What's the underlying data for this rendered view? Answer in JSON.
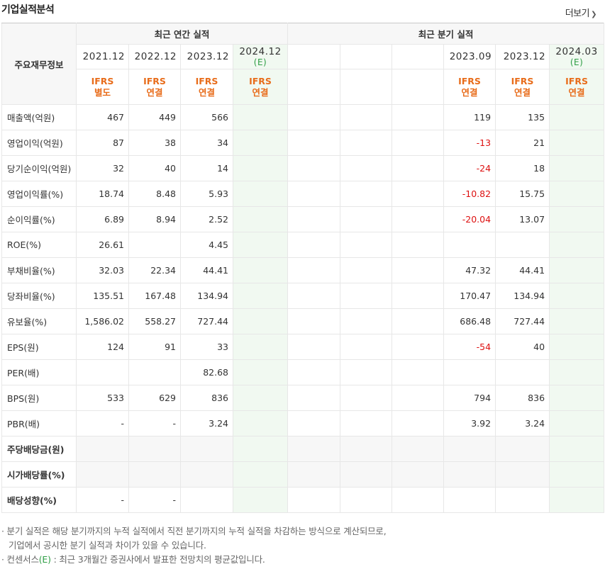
{
  "title": "기업실적분석",
  "more": {
    "label": "더보기",
    "icon": "chevron-right-icon"
  },
  "header": {
    "row_label": "주요재무정보",
    "annual_title": "최근 연간 실적",
    "quarter_title": "최근 분기 실적"
  },
  "annual": [
    {
      "period": "2021.12",
      "est": "",
      "ifrs1": "IFRS",
      "ifrs2": "별도"
    },
    {
      "period": "2022.12",
      "est": "",
      "ifrs1": "IFRS",
      "ifrs2": "연결"
    },
    {
      "period": "2023.12",
      "est": "",
      "ifrs1": "IFRS",
      "ifrs2": "연결"
    },
    {
      "period": "2024.12",
      "est": "(E)",
      "ifrs1": "IFRS",
      "ifrs2": "연결"
    }
  ],
  "quarter": [
    {
      "period": "",
      "est": "",
      "ifrs1": "",
      "ifrs2": ""
    },
    {
      "period": "",
      "est": "",
      "ifrs1": "",
      "ifrs2": ""
    },
    {
      "period": "",
      "est": "",
      "ifrs1": "",
      "ifrs2": ""
    },
    {
      "period": "2023.09",
      "est": "",
      "ifrs1": "IFRS",
      "ifrs2": "연결"
    },
    {
      "period": "2023.12",
      "est": "",
      "ifrs1": "IFRS",
      "ifrs2": "연결"
    },
    {
      "period": "2024.03",
      "est": "(E)",
      "ifrs1": "IFRS",
      "ifrs2": "연결"
    }
  ],
  "rows": [
    {
      "label": "매출액(억원)",
      "bold": false,
      "sec": false,
      "blank": false,
      "a": [
        "467",
        "449",
        "566",
        ""
      ],
      "q": [
        "",
        "",
        "",
        "119",
        "135",
        ""
      ]
    },
    {
      "label": "영업이익(억원)",
      "bold": false,
      "sec": false,
      "blank": false,
      "a": [
        "87",
        "38",
        "34",
        ""
      ],
      "q": [
        "",
        "",
        "",
        "-13",
        "21",
        ""
      ]
    },
    {
      "label": "당기순이익(억원)",
      "bold": false,
      "sec": false,
      "blank": false,
      "a": [
        "32",
        "40",
        "14",
        ""
      ],
      "q": [
        "",
        "",
        "",
        "-24",
        "18",
        ""
      ]
    },
    {
      "label": "영업이익률(%)",
      "bold": false,
      "sec": true,
      "blank": false,
      "a": [
        "18.74",
        "8.48",
        "5.93",
        ""
      ],
      "q": [
        "",
        "",
        "",
        "-10.82",
        "15.75",
        ""
      ]
    },
    {
      "label": "순이익률(%)",
      "bold": false,
      "sec": false,
      "blank": false,
      "a": [
        "6.89",
        "8.94",
        "2.52",
        ""
      ],
      "q": [
        "",
        "",
        "",
        "-20.04",
        "13.07",
        ""
      ]
    },
    {
      "label": "ROE(%)",
      "bold": false,
      "sec": false,
      "blank": false,
      "a": [
        "26.61",
        "",
        "4.45",
        ""
      ],
      "q": [
        "",
        "",
        "",
        "",
        "",
        ""
      ]
    },
    {
      "label": "부채비율(%)",
      "bold": false,
      "sec": true,
      "blank": false,
      "a": [
        "32.03",
        "22.34",
        "44.41",
        ""
      ],
      "q": [
        "",
        "",
        "",
        "47.32",
        "44.41",
        ""
      ]
    },
    {
      "label": "당좌비율(%)",
      "bold": false,
      "sec": false,
      "blank": false,
      "a": [
        "135.51",
        "167.48",
        "134.94",
        ""
      ],
      "q": [
        "",
        "",
        "",
        "170.47",
        "134.94",
        ""
      ]
    },
    {
      "label": "유보율(%)",
      "bold": false,
      "sec": false,
      "blank": false,
      "a": [
        "1,586.02",
        "558.27",
        "727.44",
        ""
      ],
      "q": [
        "",
        "",
        "",
        "686.48",
        "727.44",
        ""
      ]
    },
    {
      "label": "EPS(원)",
      "bold": false,
      "sec": true,
      "blank": false,
      "a": [
        "124",
        "91",
        "33",
        ""
      ],
      "q": [
        "",
        "",
        "",
        "-54",
        "40",
        ""
      ]
    },
    {
      "label": "PER(배)",
      "bold": false,
      "sec": false,
      "blank": false,
      "a": [
        "",
        "",
        "82.68",
        ""
      ],
      "q": [
        "",
        "",
        "",
        "",
        "",
        ""
      ]
    },
    {
      "label": "BPS(원)",
      "bold": false,
      "sec": false,
      "blank": false,
      "a": [
        "533",
        "629",
        "836",
        ""
      ],
      "q": [
        "",
        "",
        "",
        "794",
        "836",
        ""
      ]
    },
    {
      "label": "PBR(배)",
      "bold": false,
      "sec": false,
      "blank": false,
      "a": [
        "-",
        "-",
        "3.24",
        ""
      ],
      "q": [
        "",
        "",
        "",
        "3.92",
        "3.24",
        ""
      ]
    },
    {
      "label": "주당배당금(원)",
      "bold": true,
      "sec": true,
      "blank": true,
      "a": [
        "",
        "",
        "",
        ""
      ],
      "q": [
        "",
        "",
        "",
        "",
        "",
        ""
      ]
    },
    {
      "label": "시가배당률(%)",
      "bold": true,
      "sec": false,
      "blank": true,
      "a": [
        "",
        "",
        "",
        ""
      ],
      "q": [
        "",
        "",
        "",
        "",
        "",
        ""
      ]
    },
    {
      "label": "배당성향(%)",
      "bold": true,
      "sec": false,
      "blank": false,
      "a": [
        "-",
        "-",
        "",
        ""
      ],
      "q": [
        "",
        "",
        "",
        "",
        "",
        ""
      ]
    }
  ],
  "notes": {
    "line1": "분기 실적은 해당 분기까지의 누적 실적에서 직전 분기까지의 누적 실적을 차감하는 방식으로 계산되므로,",
    "line2": "기업에서 공시한 분기 실적과 차이가 있을 수 있습니다.",
    "line3_pre": "컨센서스",
    "line3_e": "(E)",
    "line3_post": ": 최근 3개월간 증권사에서 발표한 전망치의 평균값입니다."
  },
  "colors": {
    "ifrs": "#e86c1a",
    "negative": "#dd1111",
    "estimate_bg": "#f1f9f1",
    "estimate_text": "#2e9e44"
  }
}
